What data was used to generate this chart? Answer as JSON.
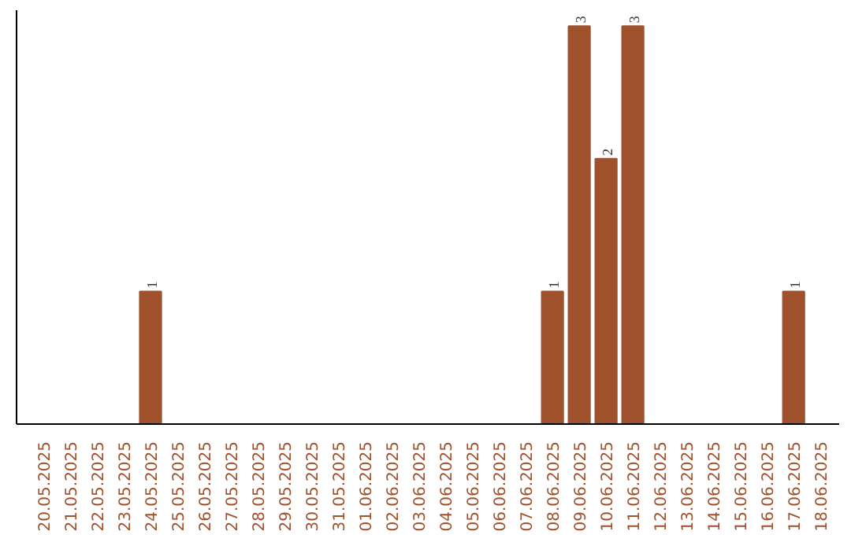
{
  "chart_data": {
    "type": "bar",
    "categories": [
      "20.05.2025",
      "21.05.2025",
      "22.05.2025",
      "23.05.2025",
      "24.05.2025",
      "25.05.2025",
      "26.05.2025",
      "27.05.2025",
      "28.05.2025",
      "29.05.2025",
      "30.05.2025",
      "31.05.2025",
      "01.06.2025",
      "02.06.2025",
      "03.06.2025",
      "04.06.2025",
      "05.06.2025",
      "06.06.2025",
      "07.06.2025",
      "08.06.2025",
      "09.06.2025",
      "10.06.2025",
      "11.06.2025",
      "12.06.2025",
      "13.06.2025",
      "14.06.2025",
      "15.06.2025",
      "16.06.2025",
      "17.06.2025",
      "18.06.2025"
    ],
    "values": [
      0,
      0,
      0,
      0,
      1,
      0,
      0,
      0,
      0,
      0,
      0,
      0,
      0,
      0,
      0,
      0,
      0,
      0,
      0,
      1,
      3,
      2,
      3,
      0,
      0,
      0,
      0,
      0,
      1,
      0
    ],
    "color": "#a0522d",
    "value_labels": [
      null,
      null,
      null,
      null,
      "1",
      null,
      null,
      null,
      null,
      null,
      null,
      null,
      null,
      null,
      null,
      null,
      null,
      null,
      null,
      "1",
      "3",
      "2",
      "3",
      null,
      null,
      null,
      null,
      null,
      "1",
      null
    ],
    "tick_labels": "x",
    "grid": false
  }
}
